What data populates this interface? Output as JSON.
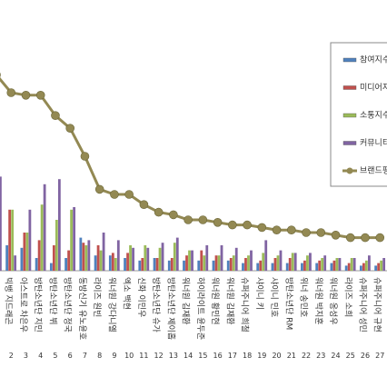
{
  "chart_data": {
    "type": "bar_line",
    "categories": [
      null,
      "빅뱅 지드래곤",
      "아스트로 차은우",
      "방탄소년단 지민",
      "방탄소년단 뷔",
      "방탄소년단 정국",
      "동방신기 유노윤호",
      "라이즈 원빈",
      "워너원 강다니엘",
      "엑소 백현",
      "신화 이민우",
      "방탄소년단 슈가",
      "방탄소년단 제이홉",
      "워너원 김재환",
      "하이라이트 윤두준",
      "워너원 황민현",
      "워너원 김재환",
      "슈퍼주니어 희철",
      "샤이니 키",
      "샤이니 민호",
      "방탄소년단 RM",
      "위너 송민호",
      "워너원 박지훈",
      "워너원 옹성우",
      "라이즈 소희",
      "슈퍼주니어 성민",
      "슈퍼주니어 규현"
    ],
    "ranks": [
      null,
      2,
      3,
      4,
      5,
      6,
      7,
      8,
      9,
      10,
      11,
      12,
      13,
      14,
      15,
      16,
      17,
      18,
      19,
      20,
      21,
      22,
      23,
      24,
      25,
      26,
      27
    ],
    "ylim": [
      0,
      100
    ],
    "series": [
      {
        "name": "참여지수",
        "color": "#4f81bd",
        "values": [
          10,
          10,
          9,
          5,
          3,
          5,
          13,
          6,
          6,
          5,
          4,
          5,
          4,
          4,
          4,
          4,
          4,
          3,
          3,
          3,
          3,
          3,
          3,
          3,
          2,
          2,
          2
        ]
      },
      {
        "name": "미디어지",
        "color": "#c0504d",
        "values": [
          5,
          24,
          15,
          12,
          10,
          8,
          11,
          10,
          7,
          7,
          5,
          5,
          5,
          6,
          8,
          6,
          5,
          5,
          4,
          5,
          5,
          4,
          4,
          4,
          3,
          3,
          3
        ]
      },
      {
        "name": "소통지수",
        "color": "#9bbb59",
        "values": [
          10,
          24,
          15,
          26,
          20,
          24,
          10,
          8,
          5,
          10,
          10,
          9,
          11,
          8,
          6,
          6,
          6,
          6,
          7,
          6,
          7,
          6,
          5,
          5,
          5,
          4,
          4
        ]
      },
      {
        "name": "커뮤니티",
        "color": "#8064a2",
        "values": [
          37,
          6,
          24,
          34,
          36,
          25,
          12,
          15,
          12,
          9,
          9,
          11,
          13,
          8,
          10,
          10,
          9,
          8,
          12,
          8,
          7,
          7,
          6,
          5,
          5,
          6,
          5
        ]
      },
      {
        "name": "브랜드평",
        "color": "#938953",
        "kind": "line",
        "values": [
          77,
          70,
          69,
          69,
          61,
          56,
          45,
          32,
          30,
          30,
          26,
          23,
          22,
          20,
          20,
          19,
          18,
          18,
          17,
          16,
          16,
          15,
          15,
          14,
          13,
          13,
          13
        ]
      }
    ]
  }
}
